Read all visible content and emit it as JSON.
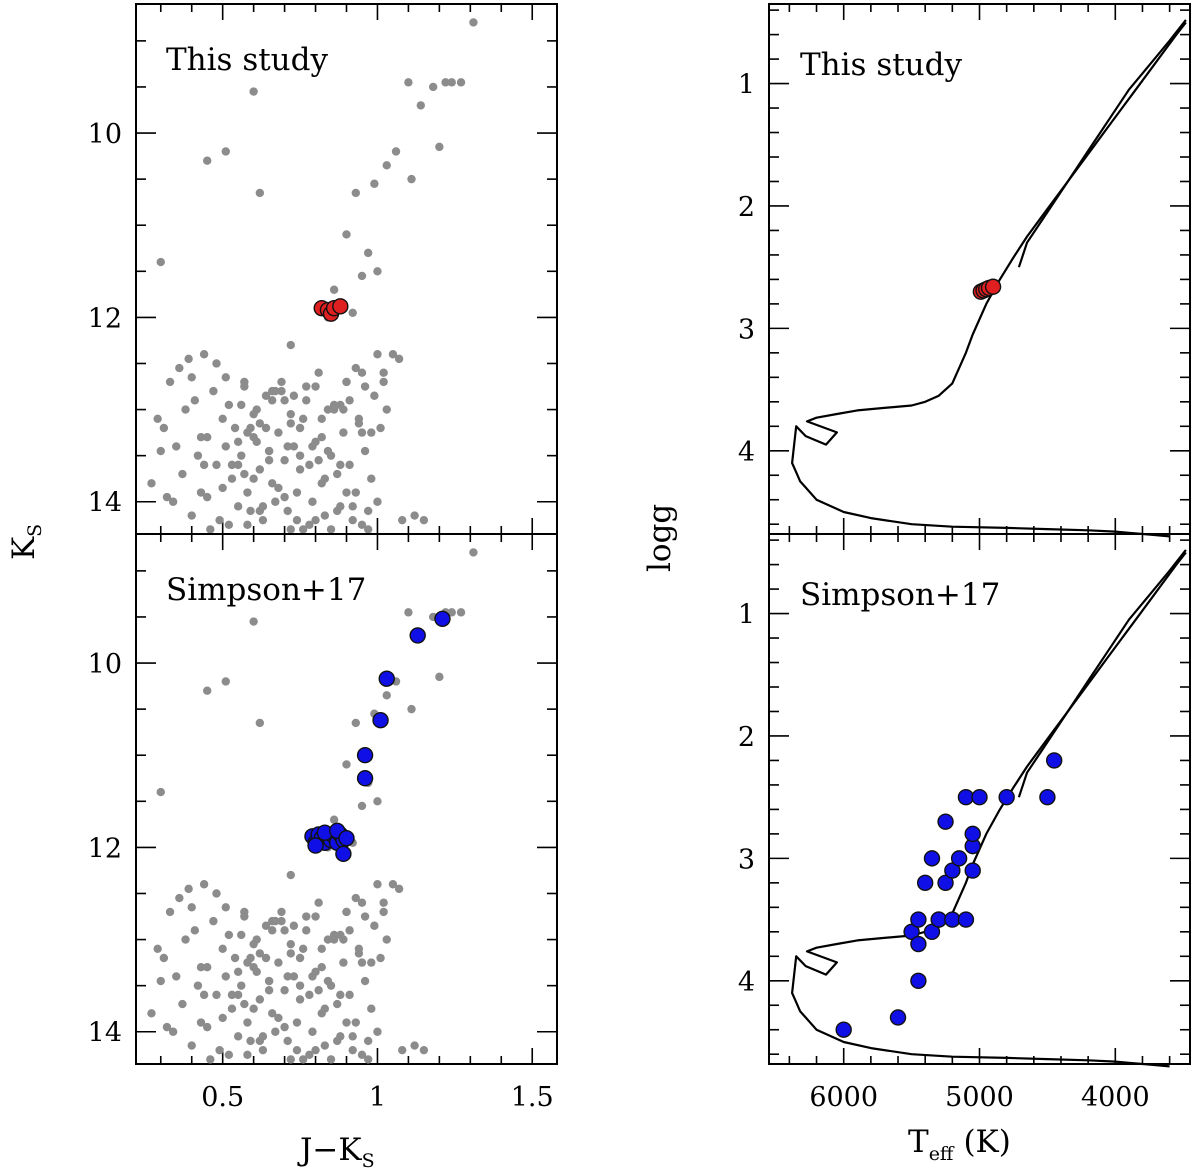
{
  "chart_data": [
    {
      "type": "scatter",
      "panel": "cmd-top",
      "label": "This study",
      "xlabel": "J−K",
      "xlabel_sub": "S",
      "ylabel": "K",
      "ylabel_sub": "S",
      "xlim": [
        0.22,
        1.58
      ],
      "ylim": [
        14.35,
        8.6
      ],
      "y_inverted": true,
      "xticks": [
        0.5,
        1,
        1.5
      ],
      "xtick_labels": [
        "0.5",
        "1",
        "1.5"
      ],
      "yticks": [
        10,
        12,
        14
      ],
      "ytick_labels": [
        "10",
        "12",
        "14"
      ],
      "series": [
        {
          "role": "field",
          "color": "#8c8c8c",
          "x": [
            0.27,
            0.31,
            0.3,
            0.34,
            0.33,
            0.36,
            0.39,
            0.38,
            0.4,
            0.41,
            0.42,
            0.44,
            0.43,
            0.45,
            0.47,
            0.48,
            0.49,
            0.5,
            0.51,
            0.52,
            0.53,
            0.54,
            0.55,
            0.56,
            0.57,
            0.58,
            0.59,
            0.6,
            0.61,
            0.62,
            0.63,
            0.64,
            0.65,
            0.66,
            0.67,
            0.68,
            0.69,
            0.7,
            0.71,
            0.72,
            0.73,
            0.74,
            0.75,
            0.76,
            0.77,
            0.78,
            0.79,
            0.8,
            0.81,
            0.82,
            0.83,
            0.84,
            0.85,
            0.86,
            0.87,
            0.88,
            0.89,
            0.9,
            0.91,
            0.92,
            0.93,
            0.94,
            0.95,
            0.96,
            0.97,
            0.98,
            0.99,
            1.0,
            1.01,
            1.02,
            1.03,
            1.05,
            1.07,
            1.08,
            1.12,
            1.15,
            0.35,
            0.37,
            0.46,
            0.5,
            0.55,
            0.58,
            0.6,
            0.62,
            0.65,
            0.7,
            0.72,
            0.75,
            0.8,
            0.85,
            0.9,
            0.95,
            1.0,
            0.32,
            0.4,
            0.45,
            0.52,
            0.57,
            0.63,
            0.68,
            0.74,
            0.78,
            0.83,
            0.87,
            0.92,
            0.97,
            0.29,
            0.44,
            0.59,
            0.66,
            0.71,
            0.77,
            0.82,
            0.88,
            0.94,
            0.53,
            0.61,
            0.69,
            0.76,
            0.84,
            0.91,
            0.98,
            1.02,
            0.48,
            0.56,
            0.64,
            0.73,
            0.81,
            0.89,
            0.96,
            0.43,
            0.51,
            0.6,
            0.67,
            0.79,
            0.86,
            0.93,
            0.55,
            0.62,
            0.7,
            0.75,
            0.82,
            0.9,
            0.58,
            0.65,
            0.72,
            0.8,
            0.88,
            0.95,
            1.1,
            1.18,
            1.22,
            1.24,
            1.27,
            1.31,
            1.14,
            1.11,
            1.2,
            1.06,
            1.03,
            0.99,
            0.93,
            0.97,
            1.0,
            0.9,
            0.95,
            0.86,
            0.88,
            0.92,
            0.84,
            0.3,
            0.45,
            0.51,
            0.6,
            0.62,
            0.57,
            0.66,
            0.72
          ],
          "y": [
            13.8,
            13.2,
            13.45,
            14.0,
            12.7,
            12.55,
            12.45,
            13.0,
            12.65,
            12.9,
            13.5,
            12.4,
            13.9,
            13.3,
            12.8,
            13.6,
            14.2,
            13.1,
            13.4,
            12.95,
            13.75,
            13.2,
            14.05,
            13.5,
            12.75,
            13.9,
            14.1,
            13.3,
            13.0,
            13.65,
            14.2,
            12.85,
            13.45,
            13.8,
            14.0,
            13.25,
            12.7,
            13.55,
            14.1,
            13.05,
            13.4,
            13.9,
            13.2,
            14.3,
            12.9,
            13.6,
            14.0,
            13.35,
            12.6,
            13.8,
            14.15,
            13.0,
            13.5,
            12.95,
            13.7,
            14.05,
            13.25,
            12.7,
            13.6,
            14.2,
            13.9,
            13.1,
            12.6,
            13.45,
            14.1,
            13.75,
            12.85,
            12.4,
            13.2,
            12.7,
            13.0,
            12.4,
            12.45,
            14.2,
            14.15,
            14.2,
            13.4,
            13.7,
            14.3,
            13.85,
            13.6,
            14.25,
            13.75,
            14.1,
            13.55,
            13.95,
            14.3,
            13.65,
            14.2,
            14.3,
            13.9,
            14.25,
            14.0,
            13.95,
            14.15,
            13.95,
            14.25,
            13.7,
            14.05,
            13.85,
            14.2,
            14.25,
            13.75,
            14.1,
            14.05,
            14.3,
            13.1,
            13.6,
            13.2,
            12.9,
            13.4,
            12.75,
            13.3,
            12.95,
            13.15,
            13.6,
            13.35,
            12.8,
            13.1,
            13.45,
            12.9,
            13.25,
            12.6,
            12.5,
            12.95,
            13.2,
            12.85,
            13.55,
            13.0,
            12.75,
            13.3,
            12.65,
            13.05,
            12.8,
            13.4,
            13.0,
            12.55,
            13.35,
            13.15,
            12.9,
            13.5,
            13.1,
            12.7,
            13.25,
            13.45,
            13.15,
            12.75,
            13.6,
            13.25,
            9.45,
            9.5,
            9.45,
            9.45,
            9.45,
            8.8,
            9.7,
            10.5,
            10.15,
            10.2,
            10.35,
            10.55,
            10.65,
            11.3,
            11.5,
            11.1,
            11.55,
            11.7,
            11.9,
            11.95,
            12.0,
            11.4,
            10.3,
            10.2,
            9.55,
            10.65,
            12.7,
            12.8,
            12.3
          ]
        },
        {
          "role": "sample",
          "color": "#e02020",
          "x": [
            0.82,
            0.84,
            0.85,
            0.86,
            0.88
          ],
          "y": [
            11.9,
            11.92,
            11.96,
            11.9,
            11.88
          ]
        }
      ]
    },
    {
      "type": "scatter",
      "panel": "cmd-bottom",
      "label": "Simpson+17",
      "xlim": [
        0.22,
        1.58
      ],
      "ylim": [
        14.35,
        8.6
      ],
      "y_inverted": true,
      "xticks": [
        0.5,
        1,
        1.5
      ],
      "xtick_labels": [
        "0.5",
        "1",
        "1.5"
      ],
      "yticks": [
        10,
        12,
        14
      ],
      "ytick_labels": [
        "10",
        "12",
        "14"
      ],
      "series": [
        {
          "role": "field",
          "color": "#8c8c8c",
          "same_as_panel": "cmd-top"
        },
        {
          "role": "sample",
          "color": "#1010e6",
          "x": [
            0.79,
            0.8,
            0.81,
            0.82,
            0.83,
            0.84,
            0.85,
            0.86,
            0.87,
            0.88,
            0.89,
            0.8,
            0.83,
            0.87,
            0.9,
            0.89,
            0.96,
            0.96,
            1.01,
            1.03,
            1.13,
            1.21
          ],
          "y": [
            11.88,
            11.95,
            11.86,
            11.9,
            11.95,
            11.87,
            11.92,
            11.88,
            11.95,
            11.86,
            11.92,
            11.98,
            11.84,
            11.82,
            11.9,
            12.07,
            11.25,
            11.0,
            10.62,
            10.17,
            9.7,
            9.52
          ]
        }
      ]
    },
    {
      "type": "line",
      "panel": "kiel-top",
      "label": "This study",
      "xlabel": "T",
      "xlabel_sub": "eff",
      "xlabel_unit": "(K)",
      "ylabel": "logg",
      "xlim": [
        6550,
        3450
      ],
      "ylim": [
        4.68,
        0.35
      ],
      "x_inverted": true,
      "y_inverted": true,
      "xticks": [
        6000,
        5000,
        4000
      ],
      "xtick_labels": [
        "6000",
        "5000",
        "4000"
      ],
      "yticks": [
        1,
        2,
        3,
        4
      ],
      "ytick_labels": [
        "1",
        "2",
        "3",
        "4"
      ],
      "isochrone": {
        "x": [
          3480,
          3550,
          3650,
          3750,
          3850,
          3950,
          4050,
          4150,
          4250,
          4350,
          4450,
          4550,
          4650,
          4750,
          4850,
          4950,
          5050,
          5100,
          5200,
          5300,
          5400,
          5500,
          5700,
          5900,
          6050,
          6200,
          6270,
          6050,
          6130,
          6280,
          6350,
          6380,
          6360,
          6320,
          6280,
          6200,
          6000,
          5800,
          5500,
          5200,
          4800,
          4500,
          4200,
          4000,
          3900,
          3800,
          3700,
          3600
        ],
        "y": [
          0.5,
          0.6,
          0.75,
          0.9,
          1.05,
          1.2,
          1.35,
          1.5,
          1.65,
          1.8,
          1.95,
          2.1,
          2.25,
          2.42,
          2.6,
          2.8,
          3.05,
          3.2,
          3.45,
          3.55,
          3.6,
          3.63,
          3.65,
          3.67,
          3.7,
          3.73,
          3.76,
          3.85,
          3.95,
          3.88,
          3.8,
          4.1,
          4.15,
          4.25,
          4.3,
          4.4,
          4.5,
          4.55,
          4.6,
          4.62,
          4.63,
          4.64,
          4.65,
          4.66,
          4.67,
          4.68,
          4.69,
          4.7
        ],
        "rgb_branch": {
          "x": [
            3480,
            3600,
            3750,
            3900,
            4050,
            4200,
            4350,
            4500,
            4650,
            4710
          ],
          "y": [
            0.48,
            0.65,
            0.85,
            1.05,
            1.3,
            1.55,
            1.8,
            2.05,
            2.3,
            2.5
          ]
        }
      },
      "series": [
        {
          "role": "sample",
          "color": "#e02020",
          "x": [
            4990,
            4970,
            4950,
            4930,
            4900
          ],
          "y": [
            2.7,
            2.69,
            2.68,
            2.67,
            2.66
          ]
        }
      ]
    },
    {
      "type": "line",
      "panel": "kiel-bottom",
      "label": "Simpson+17",
      "xlim": [
        6550,
        3450
      ],
      "ylim": [
        4.68,
        0.35
      ],
      "x_inverted": true,
      "y_inverted": true,
      "xticks": [
        6000,
        5000,
        4000
      ],
      "xtick_labels": [
        "6000",
        "5000",
        "4000"
      ],
      "yticks": [
        1,
        2,
        3,
        4
      ],
      "ytick_labels": [
        "1",
        "2",
        "3",
        "4"
      ],
      "isochrone": {
        "same_as_panel": "kiel-top"
      },
      "series": [
        {
          "role": "sample",
          "color": "#1010e6",
          "x": [
            6000,
            5600,
            5500,
            5450,
            5450,
            5450,
            5400,
            5350,
            5300,
            5250,
            5200,
            5350,
            5300,
            5250,
            5200,
            5150,
            5100,
            5100,
            5050,
            5050,
            5050,
            5000,
            4800,
            4500,
            4450
          ],
          "y": [
            4.4,
            4.3,
            3.6,
            3.7,
            3.5,
            4.0,
            3.2,
            3.0,
            3.5,
            3.2,
            3.1,
            3.6,
            3.5,
            2.7,
            3.5,
            3.0,
            2.5,
            3.5,
            2.9,
            2.8,
            3.1,
            2.5,
            2.5,
            2.5,
            2.2
          ]
        }
      ]
    }
  ]
}
